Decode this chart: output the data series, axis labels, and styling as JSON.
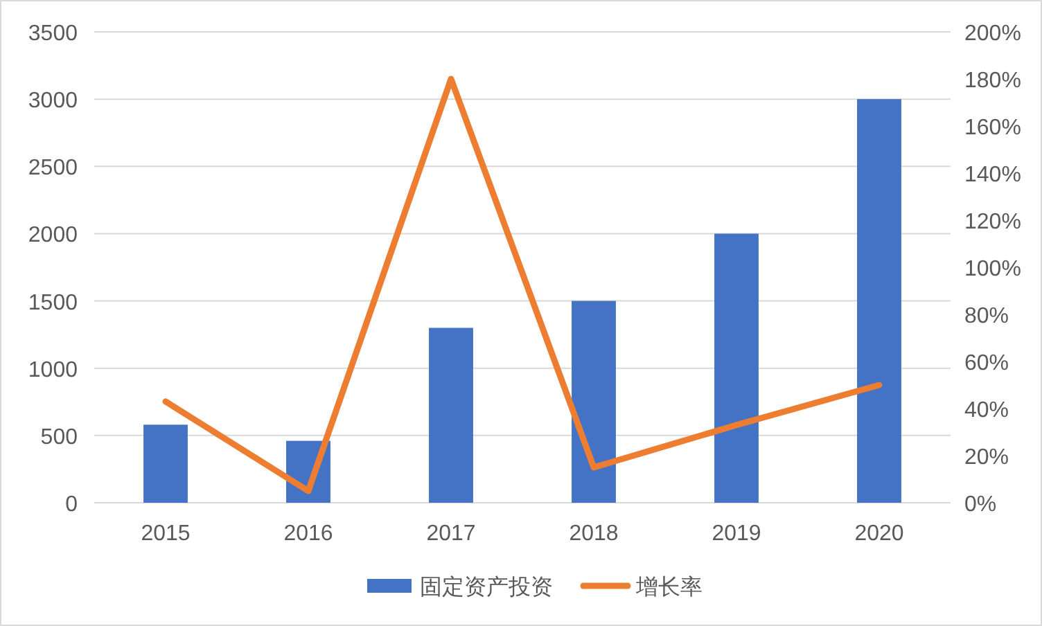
{
  "chart_data": {
    "type": "bar",
    "categories": [
      "2015",
      "2016",
      "2017",
      "2018",
      "2019",
      "2020"
    ],
    "series": [
      {
        "name": "固定资产投资",
        "color": "#4472c4",
        "values": [
          580,
          460,
          1300,
          1500,
          2000,
          3000
        ]
      },
      {
        "name": "增长率",
        "type": "line",
        "axis": "y2",
        "color": "#ed7d31",
        "values": [
          43,
          5,
          180,
          15,
          33,
          50
        ]
      }
    ],
    "ylim": [
      0,
      3500
    ],
    "yticks": [
      0,
      500,
      1000,
      1500,
      2000,
      2500,
      3000,
      3500
    ],
    "y2lim": [
      0,
      200
    ],
    "y2ticks": [
      {
        "value": 0,
        "label": "0%"
      },
      {
        "value": 20,
        "label": "20%"
      },
      {
        "value": 40,
        "label": "40%"
      },
      {
        "value": 60,
        "label": "60%"
      },
      {
        "value": 80,
        "label": "80%"
      },
      {
        "value": 100,
        "label": "100%"
      },
      {
        "value": 120,
        "label": "120%"
      },
      {
        "value": 140,
        "label": "140%"
      },
      {
        "value": 160,
        "label": "160%"
      },
      {
        "value": 180,
        "label": "180%"
      },
      {
        "value": 200,
        "label": "200%"
      }
    ],
    "grid": "y",
    "legend": "bottom",
    "marker": "none",
    "line_style": "solid"
  }
}
